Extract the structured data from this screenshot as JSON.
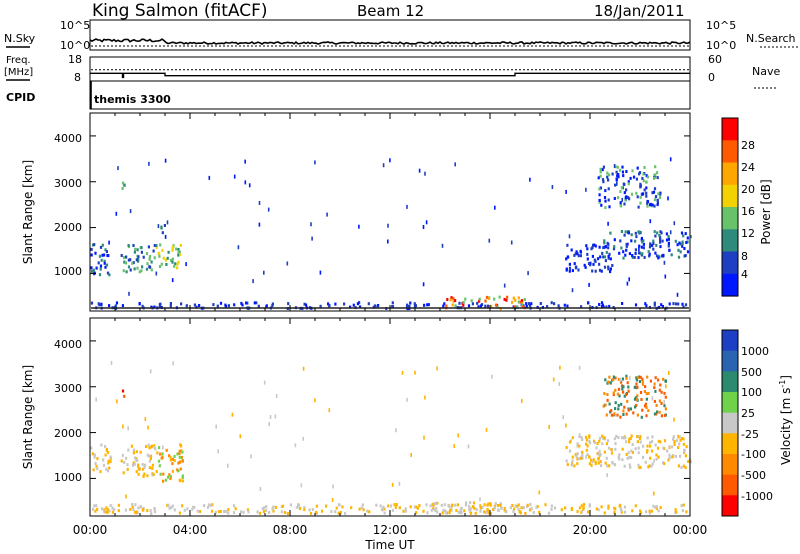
{
  "header": {
    "station": "King Salmon (fitACF)",
    "beam": "Beam 12",
    "date": "18/Jan/2011"
  },
  "noise_panel": {
    "left_label": "N.Sky",
    "right_label": "N.Search",
    "ticks_left": [
      "10^5",
      "10^0"
    ],
    "ticks_right": [
      "10^5",
      "10^0"
    ]
  },
  "freq_panel": {
    "left_label_1": "Freq.",
    "left_label_2": "[MHz]",
    "ticks_left": [
      "18",
      "8"
    ],
    "ticks_right": [
      "60",
      "0"
    ],
    "right_label": "Nave",
    "freq_steps": [
      [
        0,
        11.2
      ],
      [
        1.3,
        11.2
      ],
      [
        1.3,
        9.5
      ],
      [
        1.34,
        9.5
      ],
      [
        1.34,
        11.2
      ],
      [
        3.0,
        11.2
      ],
      [
        3.0,
        10.2
      ],
      [
        17.0,
        10.2
      ],
      [
        17.0,
        11.2
      ],
      [
        24.0,
        11.2
      ]
    ],
    "nave_level": 28
  },
  "cpid": {
    "label": "CPID",
    "mode": "themis 3300"
  },
  "power_panel": {
    "ylabel": "Slant Range [km]",
    "yticks": [
      "1000",
      "2000",
      "3000",
      "4000"
    ],
    "colorbar_label": "Power [dB]",
    "colorbar_ticks": [
      "4",
      "8",
      "12",
      "16",
      "20",
      "24",
      "28"
    ],
    "colorbar_colors": [
      "#0018ff",
      "#1f3fc2",
      "#2e8a7a",
      "#68c26a",
      "#f2d200",
      "#ffa600",
      "#ff5a00",
      "#ff0000"
    ]
  },
  "velocity_panel": {
    "ylabel": "Slant Range [km]",
    "yticks": [
      "1000",
      "2000",
      "3000",
      "4000"
    ],
    "colorbar_label": "Velocity [m s",
    "colorbar_label_sup": "-1",
    "colorbar_label_end": "]",
    "colorbar_ticks": [
      "1000",
      "500",
      "100",
      "25",
      "-25",
      "-100",
      "-500",
      "-1000"
    ],
    "colorbar_colors": [
      "#1d3fc4",
      "#2a63b0",
      "#2c8a6f",
      "#6fd24a",
      "#c8c8c8",
      "#ffb400",
      "#ff8a00",
      "#ff5a00",
      "#ff0000"
    ]
  },
  "xaxis": {
    "label": "Time UT",
    "ticks": [
      "00:00",
      "04:00",
      "08:00",
      "12:00",
      "16:00",
      "20:00",
      "00:00"
    ]
  },
  "chart_data": [
    {
      "type": "heatmap",
      "name": "power",
      "xlim": [
        0,
        24
      ],
      "ylim": [
        180,
        4500
      ],
      "clusters": [
        {
          "t": [
            0.0,
            0.8
          ],
          "r": [
            900,
            1600
          ],
          "levels": [
            0,
            1,
            2
          ]
        },
        {
          "t": [
            1.2,
            2.6
          ],
          "r": [
            1000,
            1600
          ],
          "levels": [
            1,
            2,
            3
          ]
        },
        {
          "t": [
            2.6,
            3.6
          ],
          "r": [
            1000,
            1600
          ],
          "levels": [
            2,
            3,
            4
          ]
        },
        {
          "t": [
            1.25,
            1.4
          ],
          "r": [
            2700,
            3150
          ],
          "levels": [
            2,
            3
          ]
        },
        {
          "t": [
            2.8,
            3.0
          ],
          "r": [
            1700,
            2100
          ],
          "levels": [
            1,
            2
          ]
        },
        {
          "t": [
            19.0,
            21.0
          ],
          "r": [
            1000,
            1600
          ],
          "levels": [
            0,
            1
          ]
        },
        {
          "t": [
            20.5,
            24.0
          ],
          "r": [
            1300,
            1900
          ],
          "levels": [
            0,
            1,
            2
          ]
        },
        {
          "t": [
            20.3,
            22.8
          ],
          "r": [
            2400,
            3300
          ],
          "levels": [
            0,
            1,
            3
          ]
        },
        {
          "t": [
            0.0,
            24.0
          ],
          "r": [
            200,
            330
          ],
          "levels": [
            0,
            1
          ]
        },
        {
          "t": [
            14.2,
            17.4
          ],
          "r": [
            200,
            450
          ],
          "levels": [
            3,
            5,
            6,
            7
          ]
        }
      ]
    },
    {
      "type": "heatmap",
      "name": "velocity",
      "xlim": [
        0,
        24
      ],
      "ylim": [
        180,
        4500
      ],
      "clusters": [
        {
          "t": [
            0.0,
            0.8
          ],
          "r": [
            1100,
            1700
          ],
          "levels": [
            4,
            5
          ]
        },
        {
          "t": [
            1.2,
            2.6
          ],
          "r": [
            1000,
            1700
          ],
          "levels": [
            4,
            5
          ]
        },
        {
          "t": [
            2.6,
            3.7
          ],
          "r": [
            900,
            1700
          ],
          "levels": [
            5,
            6,
            3
          ]
        },
        {
          "t": [
            1.25,
            1.4
          ],
          "r": [
            2700,
            3000
          ],
          "levels": [
            7,
            8
          ]
        },
        {
          "t": [
            19.0,
            24.0
          ],
          "r": [
            1200,
            1900
          ],
          "levels": [
            4,
            5
          ]
        },
        {
          "t": [
            20.5,
            23.0
          ],
          "r": [
            2300,
            3200
          ],
          "levels": [
            6,
            7,
            2
          ]
        },
        {
          "t": [
            0.0,
            24.0
          ],
          "r": [
            200,
            400
          ],
          "levels": [
            4,
            5
          ]
        },
        {
          "t": [
            13.5,
            17.5
          ],
          "r": [
            200,
            450
          ],
          "levels": [
            5,
            4
          ]
        }
      ]
    }
  ]
}
